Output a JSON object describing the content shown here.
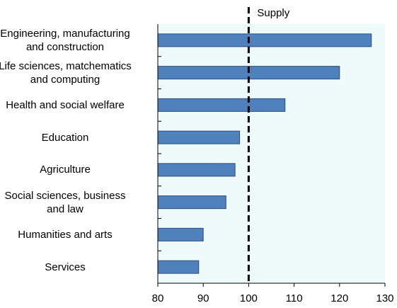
{
  "chart_data": {
    "type": "hbar",
    "categories": [
      "Engineering, manufacturing\nand construction",
      "Life sciences, matchematics\nand computing",
      "Health and social welfare",
      "Education",
      "Agriculture",
      "Social sciences, business\nand law",
      "Humanities and arts",
      "Services"
    ],
    "values": [
      127,
      120,
      108,
      98,
      97,
      95,
      90,
      89
    ],
    "color": "#4f81bd",
    "xlim": [
      80,
      130
    ],
    "xticks": [
      80,
      90,
      100,
      110,
      120,
      130
    ],
    "annotation": {
      "text": "Supply",
      "value": 100
    }
  }
}
